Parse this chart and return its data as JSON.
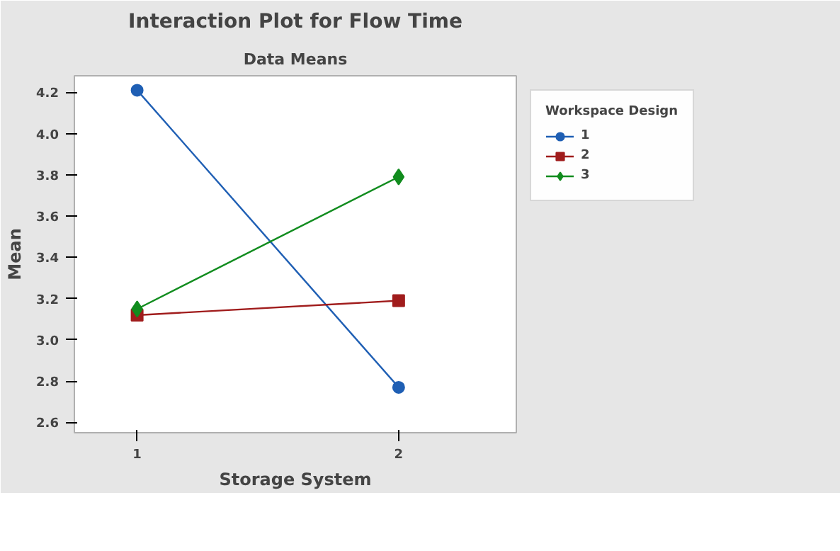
{
  "chart_data": {
    "type": "line",
    "title": "Interaction Plot for Flow Time",
    "subtitle": "Data Means",
    "xlabel": "Storage System",
    "ylabel": "Mean",
    "legend_title": "Workspace Design",
    "x": [
      1,
      2
    ],
    "xlim": [
      0.76,
      2.45
    ],
    "xticks": [
      1,
      2
    ],
    "ylim": [
      2.55,
      4.28
    ],
    "yticks": [
      2.6,
      2.8,
      {
        "value": 3.0,
        "label": "3.0"
      },
      3.2,
      3.4,
      3.6,
      3.8,
      {
        "value": 4.0,
        "label": "4.0"
      },
      4.2
    ],
    "series": [
      {
        "name": "1",
        "color": "#1f5fb4",
        "marker": "circle",
        "values": [
          4.21,
          2.77
        ]
      },
      {
        "name": "2",
        "color": "#a01c1c",
        "marker": "square",
        "values": [
          3.12,
          3.19
        ]
      },
      {
        "name": "3",
        "color": "#118c1e",
        "marker": "diamond",
        "values": [
          3.15,
          3.79
        ]
      }
    ],
    "grid": false,
    "legend": "top right",
    "line_style": "solid"
  }
}
